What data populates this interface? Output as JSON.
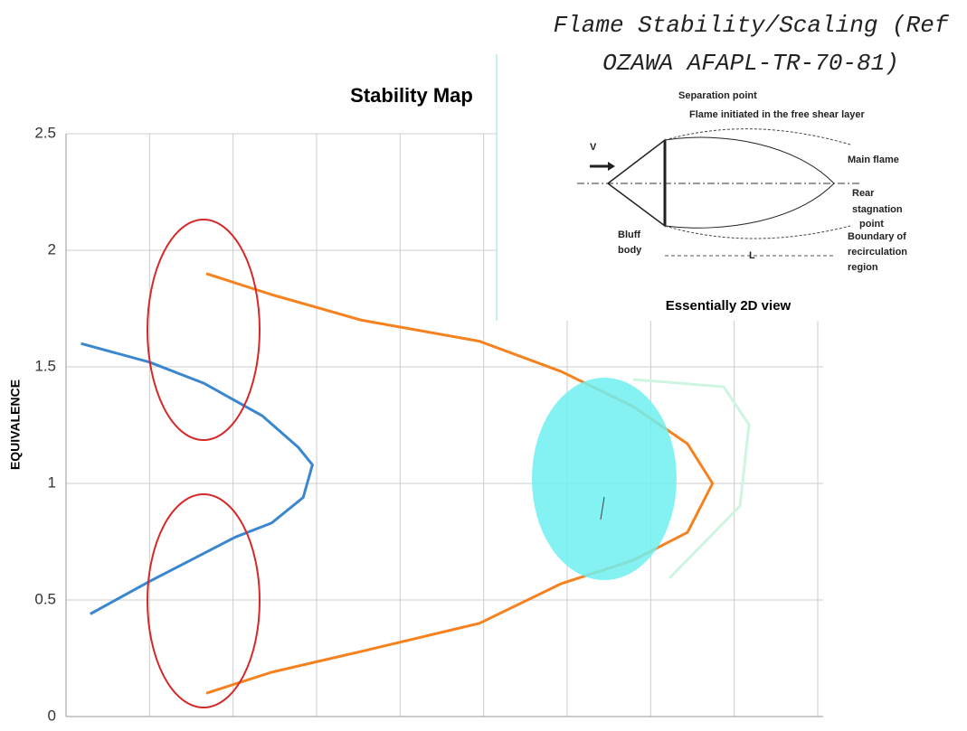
{
  "chart_data": {
    "type": "line",
    "title": "Stability Map",
    "y_label": "EQUIVALENCE",
    "ylim": [
      0,
      2.5
    ],
    "yticks": [
      0,
      0.5,
      1,
      1.5,
      2,
      2.5
    ],
    "xlim": [
      0,
      9
    ],
    "xticks": [
      1,
      2,
      3,
      4,
      5,
      6,
      7,
      8,
      9
    ],
    "grid": true,
    "series": [
      {
        "color": "#3a87d0",
        "x": [
          0.18,
          1.0,
          1.65,
          2.35,
          2.78,
          2.95,
          2.84,
          2.46,
          2.03,
          1.38,
          1.0,
          0.29
        ],
        "values": [
          1.6,
          1.52,
          1.43,
          1.29,
          1.155,
          1.08,
          0.94,
          0.83,
          0.77,
          0.65,
          0.58,
          0.44
        ]
      },
      {
        "color": "#f5821f",
        "x": [
          1.68,
          2.46,
          3.54,
          4.95,
          5.93,
          6.79,
          7.44,
          7.74,
          7.44,
          6.79,
          5.93,
          4.95,
          3.54,
          2.46,
          1.68
        ],
        "values": [
          1.9,
          1.81,
          1.7,
          1.61,
          1.48,
          1.33,
          1.17,
          1.0,
          0.79,
          0.67,
          0.57,
          0.4,
          0.28,
          0.19,
          0.1
        ]
      }
    ]
  },
  "inset": {
    "title_lines": [
      "Flame Stability/Scaling (Ref",
      "OZAWA AFAPL-TR-70-81)"
    ],
    "labels": {
      "separation": "Separation point",
      "flame": "Flame initiated in the free shear layer",
      "v": "V",
      "main": "Main flame",
      "rear": [
        "Rear",
        "stagnation",
        "point"
      ],
      "boundary": [
        "Boundary of",
        "recirculation",
        "region"
      ],
      "bluff": [
        "Bluff",
        "body"
      ],
      "l": "L"
    },
    "caption": "Essentially 2D view"
  }
}
